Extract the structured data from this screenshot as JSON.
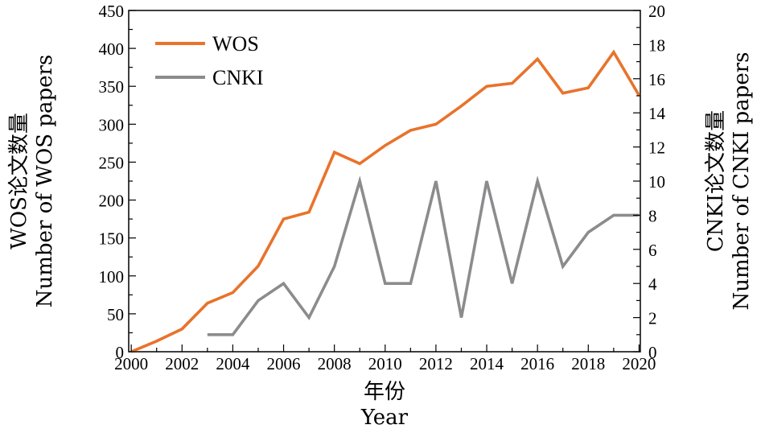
{
  "chart_data": {
    "type": "line",
    "x": [
      2000,
      2001,
      2002,
      2003,
      2004,
      2005,
      2006,
      2007,
      2008,
      2009,
      2010,
      2011,
      2012,
      2013,
      2014,
      2015,
      2016,
      2017,
      2018,
      2019,
      2020
    ],
    "x_ticks": [
      "2000",
      "2002",
      "2004",
      "2006",
      "2008",
      "2010",
      "2012",
      "2014",
      "2016",
      "2018",
      "2020"
    ],
    "x_tick_values": [
      2000,
      2002,
      2004,
      2006,
      2008,
      2010,
      2012,
      2014,
      2016,
      2018,
      2020
    ],
    "xlim": [
      1999.9,
      2020.05
    ],
    "xlabel": "年份",
    "xlabel_en": "Year",
    "y_left": {
      "label": "WOS论文数量",
      "label_en": "Number of WOS papers",
      "lim": [
        0,
        450
      ],
      "ticks": [
        0,
        50,
        100,
        150,
        200,
        250,
        300,
        350,
        400,
        450
      ]
    },
    "y_right": {
      "label": "CNKI论文数量",
      "label_en": "Number of CNKI papers",
      "lim": [
        0,
        20
      ],
      "ticks": [
        0,
        2,
        4,
        6,
        8,
        10,
        12,
        14,
        16,
        18,
        20
      ]
    },
    "series": [
      {
        "name": "WOS",
        "axis": "left",
        "color": "#E8732C",
        "x": [
          2000,
          2001,
          2002,
          2003,
          2004,
          2005,
          2006,
          2007,
          2008,
          2009,
          2010,
          2011,
          2012,
          2013,
          2014,
          2015,
          2016,
          2017,
          2018,
          2019,
          2020
        ],
        "values": [
          0,
          14,
          30,
          64,
          78,
          113,
          175,
          184,
          263,
          248,
          272,
          292,
          300,
          324,
          350,
          354,
          386,
          341,
          348,
          395,
          338
        ]
      },
      {
        "name": "CNKI",
        "axis": "right",
        "color": "#8C8C8E",
        "x": [
          2003,
          2004,
          2005,
          2006,
          2007,
          2008,
          2009,
          2010,
          2011,
          2012,
          2013,
          2014,
          2015,
          2016,
          2017,
          2018,
          2019,
          2020
        ],
        "values": [
          1,
          1,
          3,
          4,
          2,
          5,
          10,
          4,
          4,
          10,
          2,
          10,
          4,
          10,
          5,
          7,
          8,
          8
        ]
      }
    ],
    "legend": {
      "position": "top-left"
    },
    "grid": false
  }
}
